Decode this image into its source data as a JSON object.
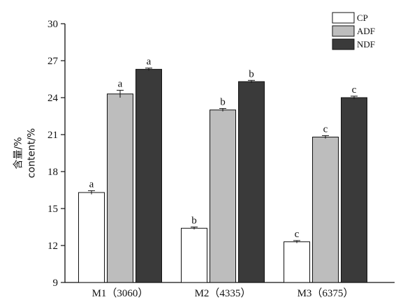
{
  "chart_data": {
    "type": "bar",
    "categories": [
      "M1（3060）",
      "M2（4335）",
      "M3（6375）"
    ],
    "series": [
      {
        "name": "CP",
        "color": "#ffffff",
        "values": [
          16.3,
          13.4,
          12.3
        ],
        "errors": [
          0.15,
          0.1,
          0.1
        ],
        "letters": [
          "a",
          "b",
          "c"
        ]
      },
      {
        "name": "ADF",
        "color": "#bdbdbd",
        "values": [
          24.3,
          23.0,
          20.8
        ],
        "errors": [
          0.3,
          0.12,
          0.12
        ],
        "letters": [
          "a",
          "b",
          "c"
        ]
      },
      {
        "name": "NDF",
        "color": "#3a3a3a",
        "values": [
          26.3,
          25.3,
          24.0
        ],
        "errors": [
          0.1,
          0.1,
          0.12
        ],
        "letters": [
          "a",
          "b",
          "c"
        ]
      }
    ],
    "ylabel_lines": [
      "含量/%",
      "content/%"
    ],
    "ylim": [
      9,
      30
    ],
    "yticks": [
      9,
      12,
      15,
      18,
      21,
      24,
      27,
      30
    ],
    "legend_position": "top-right",
    "grid": false
  }
}
